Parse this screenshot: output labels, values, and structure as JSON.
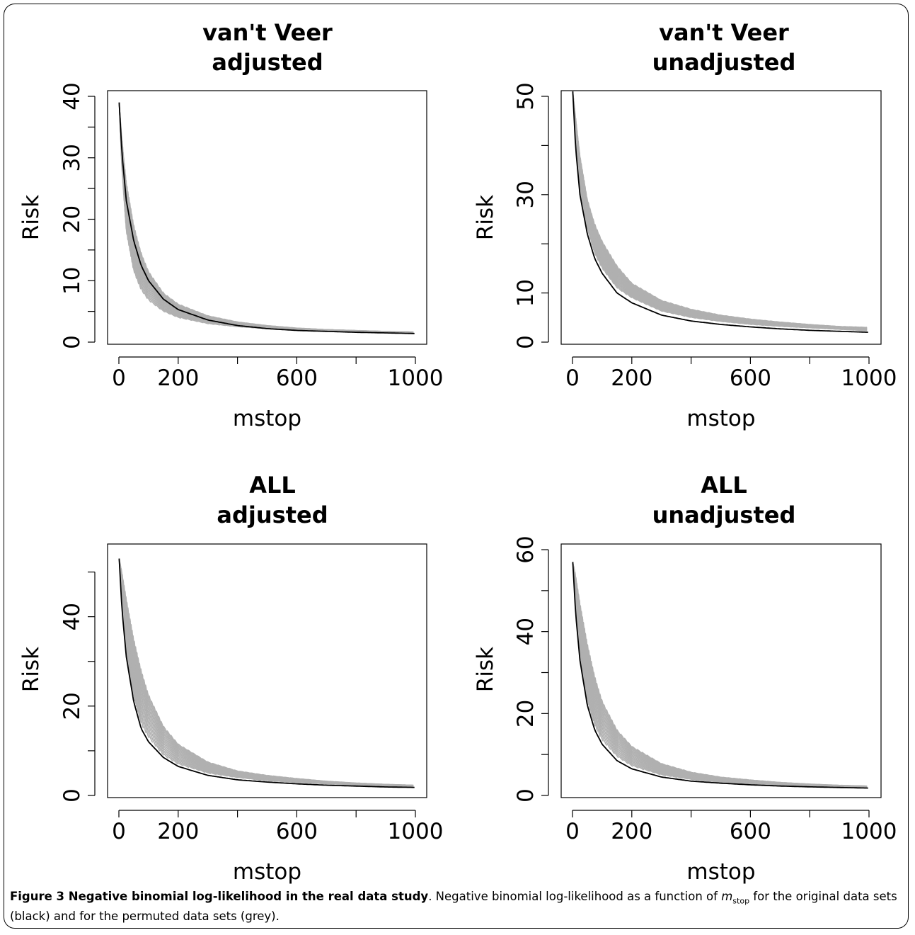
{
  "colors": {
    "original": "#000000",
    "permuted": "#b0b0b0",
    "axis": "#000000"
  },
  "chart_data": [
    {
      "type": "line",
      "title": [
        "van't Veer",
        "adjusted"
      ],
      "xlabel": "mstop",
      "ylabel": "Risk",
      "xlim": [
        0,
        1000
      ],
      "ylim": [
        0,
        40
      ],
      "xticks": [
        0,
        200,
        400,
        600,
        800,
        1000
      ],
      "xtick_labels": [
        "0",
        "200",
        "",
        "600",
        "",
        "1000"
      ],
      "yticks": [
        0,
        5,
        10,
        15,
        20,
        25,
        30,
        35,
        40
      ],
      "ytick_labels": [
        "0",
        "",
        "10",
        "",
        "20",
        "",
        "30",
        "",
        "40"
      ],
      "series": [
        {
          "x": [
            1,
            10,
            25,
            50,
            75,
            100,
            150,
            200,
            300,
            400,
            500,
            600,
            700,
            800,
            900,
            1000
          ],
          "y": [
            39,
            31,
            23,
            16.5,
            12.5,
            10,
            7,
            5.3,
            3.6,
            2.7,
            2.2,
            1.9,
            1.75,
            1.6,
            1.5,
            1.4
          ]
        },
        {
          "x": [
            1,
            10,
            25,
            50,
            75,
            100,
            150,
            200,
            300,
            400,
            500,
            600,
            700,
            800,
            900,
            1000
          ],
          "y": [
            39,
            28,
            18,
            11.5,
            8.5,
            6.8,
            5,
            4,
            3,
            2.5,
            2.2,
            2,
            1.8,
            1.7,
            1.6,
            1.5
          ],
          "y_upper": [
            39,
            33,
            26,
            19,
            14.5,
            11.5,
            8,
            6.2,
            4.3,
            3.3,
            2.7,
            2.3,
            2.05,
            1.9,
            1.75,
            1.65
          ]
        }
      ]
    },
    {
      "type": "line",
      "title": [
        "van't Veer",
        "unadjusted"
      ],
      "xlabel": "mstop",
      "ylabel": "Risk",
      "xlim": [
        0,
        1000
      ],
      "ylim": [
        0,
        50
      ],
      "xticks": [
        0,
        200,
        400,
        600,
        800,
        1000
      ],
      "xtick_labels": [
        "0",
        "200",
        "",
        "600",
        "",
        "1000"
      ],
      "yticks": [
        0,
        10,
        20,
        30,
        40,
        50
      ],
      "ytick_labels": [
        "0",
        "10",
        "",
        "30",
        "",
        "50"
      ],
      "series": [
        {
          "x": [
            1,
            10,
            25,
            50,
            75,
            100,
            150,
            200,
            300,
            400,
            500,
            600,
            700,
            800,
            900,
            1000
          ],
          "y": [
            51,
            40,
            30,
            22,
            17,
            14,
            10,
            8,
            5.5,
            4.3,
            3.6,
            3.1,
            2.7,
            2.4,
            2.2,
            2
          ]
        },
        {
          "x": [
            1,
            10,
            25,
            50,
            75,
            100,
            150,
            200,
            300,
            400,
            500,
            600,
            700,
            800,
            900,
            1000
          ],
          "y": [
            51,
            41,
            31,
            23,
            18,
            15,
            11,
            9,
            6.3,
            5,
            4.2,
            3.6,
            3.2,
            2.9,
            2.6,
            2.3
          ],
          "y_upper": [
            51,
            46,
            38,
            29,
            24,
            20.5,
            15.5,
            12,
            8.5,
            6.7,
            5.5,
            4.7,
            4.1,
            3.6,
            3.2,
            3
          ]
        }
      ]
    },
    {
      "type": "line",
      "title": [
        "ALL",
        "adjusted"
      ],
      "xlabel": "mstop",
      "ylabel": "Risk",
      "xlim": [
        0,
        1000
      ],
      "ylim": [
        0,
        55
      ],
      "xticks": [
        0,
        200,
        400,
        600,
        800,
        1000
      ],
      "xtick_labels": [
        "0",
        "200",
        "",
        "600",
        "",
        "1000"
      ],
      "yticks": [
        0,
        10,
        20,
        30,
        40,
        50
      ],
      "ytick_labels": [
        "0",
        "",
        "20",
        "",
        "40",
        ""
      ],
      "series": [
        {
          "x": [
            1,
            10,
            25,
            50,
            75,
            100,
            150,
            200,
            300,
            400,
            500,
            600,
            700,
            800,
            900,
            1000
          ],
          "y": [
            53,
            42,
            31,
            21,
            15,
            12,
            8.5,
            6.5,
            4.5,
            3.5,
            3,
            2.6,
            2.3,
            2.1,
            1.9,
            1.8
          ]
        },
        {
          "x": [
            1,
            10,
            25,
            50,
            75,
            100,
            150,
            200,
            300,
            400,
            500,
            600,
            700,
            800,
            900,
            1000
          ],
          "y": [
            53,
            43,
            32,
            22,
            16,
            13,
            9,
            7,
            5,
            4,
            3.3,
            2.9,
            2.6,
            2.3,
            2.1,
            2
          ],
          "y_upper": [
            53,
            50,
            44,
            35,
            28,
            22.5,
            15.5,
            11.5,
            7.5,
            5.5,
            4.5,
            3.8,
            3.2,
            2.8,
            2.5,
            2.3
          ]
        }
      ]
    },
    {
      "type": "line",
      "title": [
        "ALL",
        "unadjusted"
      ],
      "xlabel": "mstop",
      "ylabel": "Risk",
      "xlim": [
        0,
        1000
      ],
      "ylim": [
        0,
        60
      ],
      "xticks": [
        0,
        200,
        400,
        600,
        800,
        1000
      ],
      "xtick_labels": [
        "0",
        "200",
        "",
        "600",
        "",
        "1000"
      ],
      "yticks": [
        0,
        10,
        20,
        30,
        40,
        50,
        60
      ],
      "ytick_labels": [
        "0",
        "",
        "20",
        "",
        "40",
        "",
        "60"
      ],
      "series": [
        {
          "x": [
            1,
            10,
            25,
            50,
            75,
            100,
            150,
            200,
            300,
            400,
            500,
            600,
            700,
            800,
            900,
            1000
          ],
          "y": [
            57,
            45,
            33,
            22,
            16,
            12.5,
            8.5,
            6.5,
            4.5,
            3.5,
            3,
            2.6,
            2.3,
            2.1,
            1.95,
            1.8
          ]
        },
        {
          "x": [
            1,
            10,
            25,
            50,
            75,
            100,
            150,
            200,
            300,
            400,
            500,
            600,
            700,
            800,
            900,
            1000
          ],
          "y": [
            57,
            46,
            34,
            23,
            17,
            13.5,
            9.5,
            7.2,
            5,
            3.9,
            3.2,
            2.8,
            2.5,
            2.3,
            2.1,
            2
          ],
          "y_upper": [
            57,
            54,
            47,
            37,
            29,
            23,
            16,
            12,
            7.8,
            5.7,
            4.5,
            3.8,
            3.2,
            2.8,
            2.5,
            2.3
          ]
        }
      ]
    }
  ],
  "caption": {
    "lead": "Figure 3 Negative binomial log-likelihood in the real data study",
    "text_1": ". Negative binomial log-likelihood as a function of ",
    "var": "m",
    "var_sub": "stop",
    "text_2": " for the original data sets (black) and for the permuted data sets (grey)."
  }
}
